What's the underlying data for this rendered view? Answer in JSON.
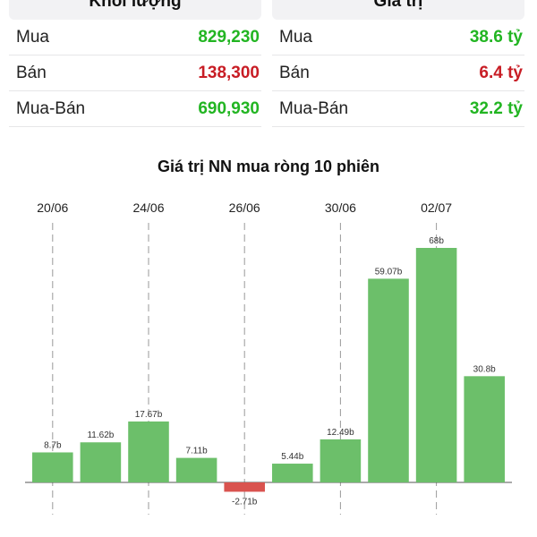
{
  "volume_panel": {
    "title": "Khối lượng",
    "rows": [
      {
        "label": "Mua",
        "value": "829,230",
        "color": "green"
      },
      {
        "label": "Bán",
        "value": "138,300",
        "color": "red"
      },
      {
        "label": "Mua-Bán",
        "value": "690,930",
        "color": "green"
      }
    ]
  },
  "value_panel": {
    "title": "Giá trị",
    "rows": [
      {
        "label": "Mua",
        "value": "38.6 tỷ",
        "color": "green"
      },
      {
        "label": "Bán",
        "value": "6.4 tỷ",
        "color": "red"
      },
      {
        "label": "Mua-Bán",
        "value": "32.2 tỷ",
        "color": "green"
      }
    ]
  },
  "colors": {
    "positive": "#6cbf6a",
    "negative": "#d9534f",
    "green_text": "#22b522",
    "red_text": "#c81d25"
  },
  "chart_data": {
    "type": "bar",
    "title": "Giá trị NN mua ròng 10 phiên",
    "categories": [
      "",
      "",
      "",
      "",
      "",
      "",
      "",
      "",
      "",
      ""
    ],
    "x_tick_labels": [
      "20/06",
      "24/06",
      "26/06",
      "30/06",
      "02/07"
    ],
    "x_tick_positions": [
      0.5,
      2.5,
      4.5,
      6.5,
      8.5
    ],
    "values": [
      8.7,
      11.62,
      17.67,
      7.11,
      -2.71,
      5.44,
      12.49,
      59.07,
      68,
      30.8
    ],
    "data_labels": [
      "8.7b",
      "11.62b",
      "17.67b",
      "7.11b",
      "-2.71b",
      "5.44b",
      "12.49b",
      "59.07b",
      "68b",
      "30.8b"
    ],
    "ylim": [
      -3,
      68
    ],
    "grid": "vertical dashed at tick labels",
    "legend": "none"
  }
}
